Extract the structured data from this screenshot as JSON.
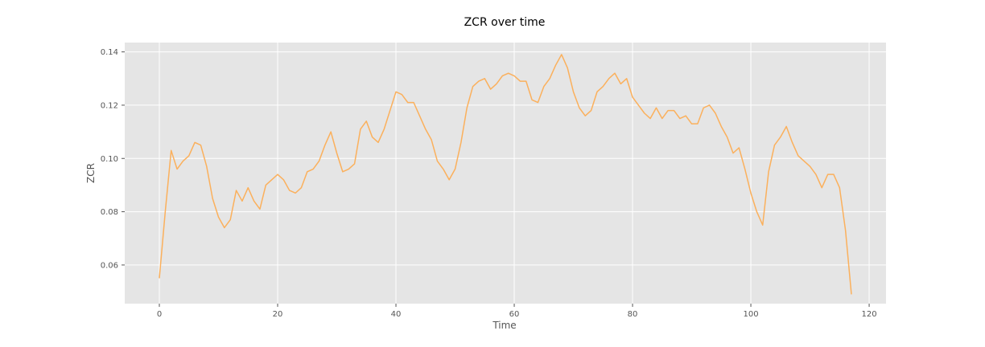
{
  "chart_data": {
    "type": "line",
    "title": "ZCR over time",
    "xlabel": "Time",
    "ylabel": "ZCR",
    "xlim": [
      -5.85,
      122.85
    ],
    "ylim": [
      0.0455,
      0.1435
    ],
    "xticks": [
      0,
      20,
      40,
      60,
      80,
      100,
      120
    ],
    "xtick_labels": [
      "0",
      "20",
      "40",
      "60",
      "80",
      "100",
      "120"
    ],
    "yticks": [
      0.06,
      0.08,
      0.1,
      0.12,
      0.14
    ],
    "ytick_labels": [
      "0.06",
      "0.08",
      "0.10",
      "0.12",
      "0.14"
    ],
    "grid": true,
    "legend": false,
    "background_color": "#e5e5e5",
    "line_color": "#fbb05c",
    "series": [
      {
        "x": [
          0,
          1,
          2,
          3,
          4,
          5,
          6,
          7,
          8,
          9,
          10,
          11,
          12,
          13,
          14,
          15,
          16,
          17,
          18,
          19,
          20,
          21,
          22,
          23,
          24,
          25,
          26,
          27,
          28,
          29,
          30,
          31,
          32,
          33,
          34,
          35,
          36,
          37,
          38,
          39,
          40,
          41,
          42,
          43,
          44,
          45,
          46,
          47,
          48,
          49,
          50,
          51,
          52,
          53,
          54,
          55,
          56,
          57,
          58,
          59,
          60,
          61,
          62,
          63,
          64,
          65,
          66,
          67,
          68,
          69,
          70,
          71,
          72,
          73,
          74,
          75,
          76,
          77,
          78,
          79,
          80,
          81,
          82,
          83,
          84,
          85,
          86,
          87,
          88,
          89,
          90,
          91,
          92,
          93,
          94,
          95,
          96,
          97,
          98,
          99,
          100,
          101,
          102,
          103,
          104,
          105,
          106,
          107,
          108,
          109,
          110,
          111,
          112,
          113,
          114,
          115,
          116,
          117
        ],
        "y": [
          0.055,
          0.08,
          0.103,
          0.096,
          0.099,
          0.101,
          0.106,
          0.105,
          0.097,
          0.085,
          0.078,
          0.074,
          0.077,
          0.088,
          0.084,
          0.089,
          0.084,
          0.081,
          0.09,
          0.092,
          0.094,
          0.092,
          0.088,
          0.087,
          0.089,
          0.095,
          0.096,
          0.099,
          0.105,
          0.11,
          0.102,
          0.095,
          0.096,
          0.098,
          0.111,
          0.114,
          0.108,
          0.106,
          0.111,
          0.118,
          0.125,
          0.124,
          0.121,
          0.121,
          0.116,
          0.111,
          0.107,
          0.099,
          0.096,
          0.092,
          0.096,
          0.106,
          0.119,
          0.127,
          0.129,
          0.13,
          0.126,
          0.128,
          0.131,
          0.132,
          0.131,
          0.129,
          0.129,
          0.122,
          0.121,
          0.127,
          0.13,
          0.135,
          0.139,
          0.134,
          0.125,
          0.119,
          0.116,
          0.118,
          0.125,
          0.127,
          0.13,
          0.132,
          0.128,
          0.13,
          0.123,
          0.12,
          0.117,
          0.115,
          0.119,
          0.115,
          0.118,
          0.118,
          0.115,
          0.116,
          0.113,
          0.113,
          0.119,
          0.12,
          0.117,
          0.112,
          0.108,
          0.102,
          0.104,
          0.096,
          0.087,
          0.08,
          0.075,
          0.095,
          0.105,
          0.108,
          0.112,
          0.106,
          0.101,
          0.099,
          0.097,
          0.094,
          0.089,
          0.094,
          0.094,
          0.089,
          0.073,
          0.049
        ]
      }
    ]
  }
}
